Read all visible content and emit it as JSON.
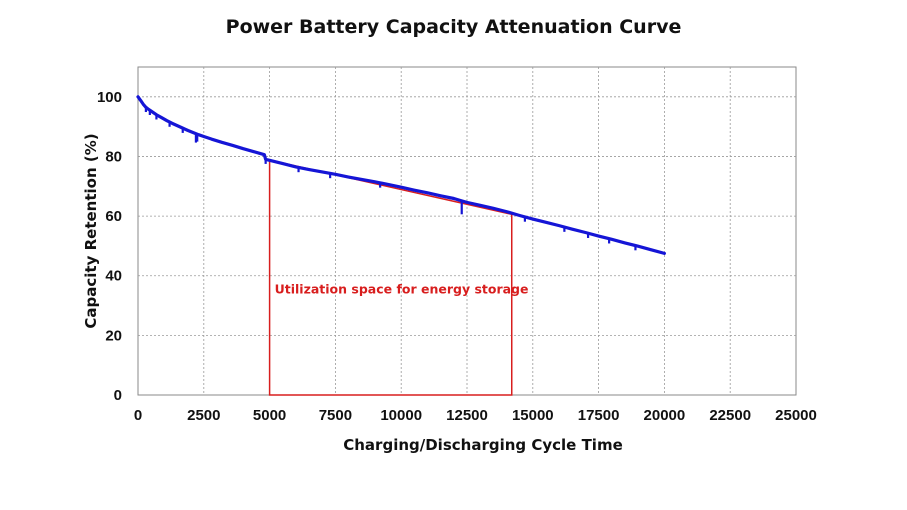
{
  "chart_data": {
    "type": "line",
    "title": "Power Battery Capacity Attenuation Curve",
    "xlabel": "Charging/Discharging Cycle Time",
    "ylabel": "Capacity Retention (%)",
    "xlim": [
      0,
      25000
    ],
    "ylim": [
      0,
      110
    ],
    "x_ticks": [
      0,
      2500,
      5000,
      7500,
      10000,
      12500,
      15000,
      17500,
      20000,
      22500,
      25000
    ],
    "y_ticks": [
      0,
      20,
      40,
      60,
      80,
      100
    ],
    "grid": true,
    "series": [
      {
        "color": "#1515d6",
        "x": [
          0,
          100,
          200,
          300,
          400,
          500,
          700,
          900,
          1100,
          1300,
          1500,
          1700,
          1900,
          2100,
          2300,
          2500,
          2800,
          3200,
          3600,
          4000,
          4400,
          4800,
          4850,
          5000,
          5500,
          6000,
          6500,
          7000,
          7500,
          8000,
          8500,
          9000,
          9500,
          10000,
          10500,
          11000,
          11500,
          12000,
          12300,
          12500,
          13000,
          13500,
          14000,
          14500,
          15000,
          15500,
          16000,
          16500,
          17000,
          17500,
          18000,
          18500,
          19000,
          19500,
          20000
        ],
        "y": [
          100,
          98.8,
          97.5,
          96.5,
          95.8,
          95.2,
          94.0,
          93.0,
          92.0,
          91.1,
          90.3,
          89.5,
          88.7,
          88.0,
          87.3,
          86.7,
          85.8,
          84.7,
          83.7,
          82.6,
          81.6,
          80.6,
          79.0,
          78.7,
          77.6,
          76.5,
          75.6,
          74.8,
          74.0,
          73.1,
          72.3,
          71.5,
          70.6,
          69.7,
          68.7,
          67.8,
          66.8,
          65.9,
          65.1,
          64.6,
          63.6,
          62.6,
          61.5,
          60.2,
          59.0,
          57.9,
          56.8,
          55.6,
          54.5,
          53.3,
          52.2,
          51.0,
          49.9,
          48.7,
          47.5
        ]
      }
    ],
    "annotation": {
      "text": "Utilization space for energy storage",
      "color": "#d81e1e",
      "x_range": [
        5000,
        14200
      ],
      "y_top_left": 78.8,
      "y_top_right": 60.6
    }
  }
}
